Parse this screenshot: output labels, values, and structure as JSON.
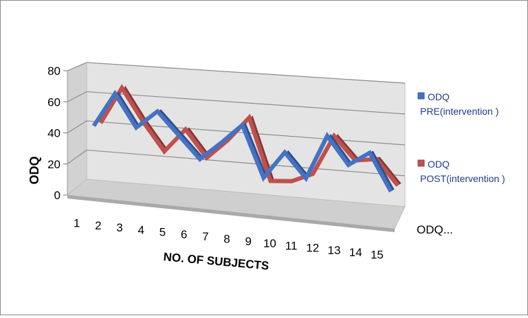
{
  "chart_data": {
    "type": "line",
    "style": "3d",
    "title": "",
    "xlabel": "NO. OF SUBJECTS",
    "ylabel": "ODQ",
    "ylim": [
      0,
      80
    ],
    "yticks": [
      "0",
      "20",
      "40",
      "60",
      "80"
    ],
    "gridlines": true,
    "legend": "right",
    "depth_label": "ODQ...",
    "categories": [
      "1",
      "2",
      "3",
      "4",
      "5",
      "6",
      "7",
      "8",
      "9",
      "10",
      "11",
      "12",
      "13",
      "14",
      "15"
    ],
    "series": [
      {
        "name_lines": [
          "ODQ",
          "PRE(intervention )"
        ],
        "color": "#4472c4",
        "values": [
          40,
          63,
          41,
          53,
          38,
          23,
          35,
          48,
          14,
          32,
          16,
          45,
          27,
          36,
          12
        ]
      },
      {
        "name_lines": [
          "ODQ",
          "POST(intervention )"
        ],
        "color": "#c0504d",
        "values": [
          41,
          66,
          44,
          25,
          41,
          23,
          36,
          52,
          11,
          12,
          18,
          44,
          29,
          31,
          15
        ]
      }
    ]
  }
}
